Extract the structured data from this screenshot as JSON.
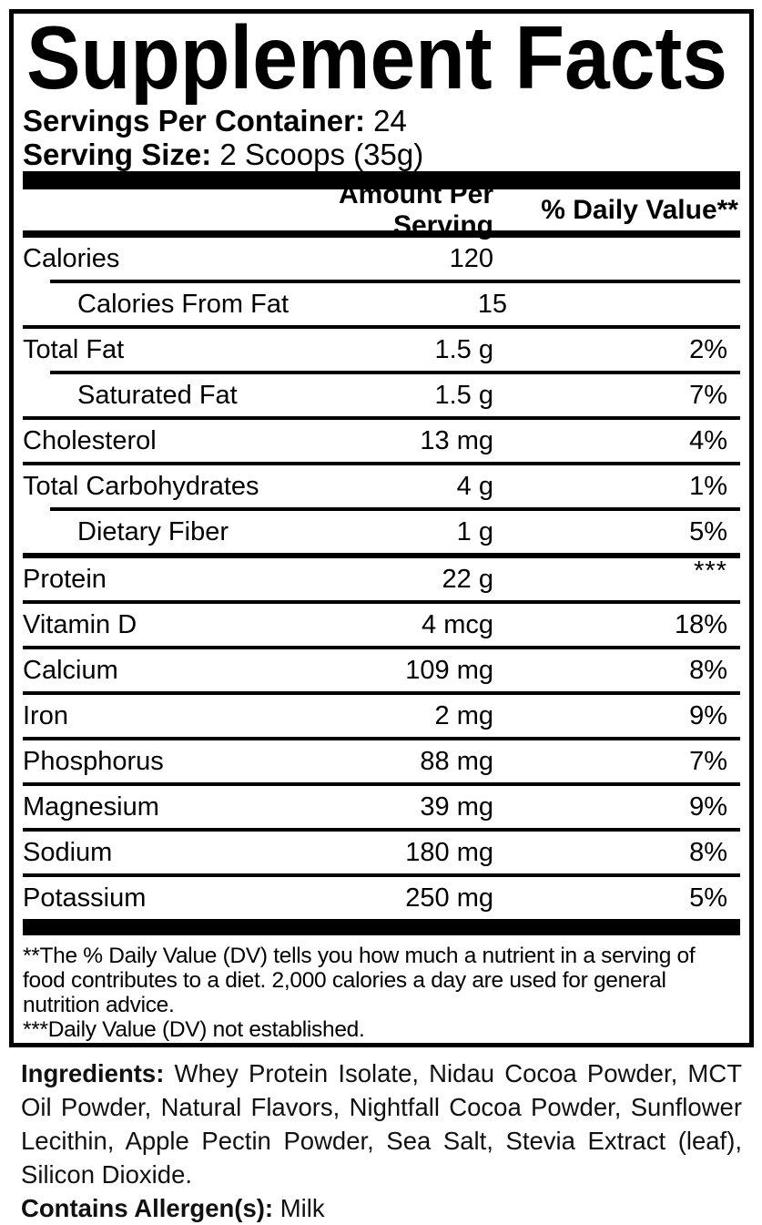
{
  "title": "Supplement Facts",
  "servings": {
    "per_container_label": "Servings Per Container:",
    "per_container_value": " 24",
    "size_label": "Serving Size:",
    "size_value": " 2 Scoops (35g)"
  },
  "table": {
    "amount_header": "Amount Per Serving",
    "dv_header": "% Daily Value**",
    "rows": [
      {
        "name": "Calories",
        "amount": "120",
        "dv": "",
        "indent": false,
        "sep": "indented"
      },
      {
        "name": "Calories From Fat",
        "amount": "15",
        "dv": "",
        "indent": true,
        "sep": "full"
      },
      {
        "name": "Total Fat",
        "amount": "1.5 g",
        "dv": "2%",
        "indent": false,
        "sep": "indented"
      },
      {
        "name": "Saturated Fat",
        "amount": "1.5 g",
        "dv": "7%",
        "indent": true,
        "sep": "full"
      },
      {
        "name": "Cholesterol",
        "amount": "13 mg",
        "dv": "4%",
        "indent": false,
        "sep": "full"
      },
      {
        "name": "Total Carbohydrates",
        "amount": "4 g",
        "dv": "1%",
        "indent": false,
        "sep": "indented"
      },
      {
        "name": "Dietary Fiber",
        "amount": "1 g",
        "dv": "5%",
        "indent": true,
        "sep": "medium"
      },
      {
        "name": "Protein",
        "amount": "22 g",
        "dv": "***",
        "indent": false,
        "sep": "full",
        "dv_raised": true
      },
      {
        "name": "Vitamin D",
        "amount": "4 mcg",
        "dv": "18%",
        "indent": false,
        "sep": "full"
      },
      {
        "name": "Calcium",
        "amount": "109 mg",
        "dv": "8%",
        "indent": false,
        "sep": "full"
      },
      {
        "name": "Iron",
        "amount": "2 mg",
        "dv": "9%",
        "indent": false,
        "sep": "full"
      },
      {
        "name": "Phosphorus",
        "amount": "88 mg",
        "dv": "7%",
        "indent": false,
        "sep": "full"
      },
      {
        "name": "Magnesium",
        "amount": "39 mg",
        "dv": "9%",
        "indent": false,
        "sep": "full"
      },
      {
        "name": "Sodium",
        "amount": "180 mg",
        "dv": "8%",
        "indent": false,
        "sep": "full"
      },
      {
        "name": "Potassium",
        "amount": "250 mg",
        "dv": "5%",
        "indent": false,
        "sep": "none"
      }
    ]
  },
  "footnotes": {
    "daily_value": "**The % Daily Value (DV) tells you how much a nutrient in a serving of food contributes to a diet. 2,000 calories a day are used for general nutrition advice.",
    "not_established": "***Daily Value (DV) not established."
  },
  "ingredients": {
    "label": "Ingredients:",
    "text": " Whey Protein Isolate, Nidau Cocoa Powder, MCT Oil Powder, Natural Flavors, Nightfall Cocoa Powder, Sunflower Lecithin, Apple Pectin Powder, Sea Salt, Stevia Extract (leaf), Silicon Dioxide.",
    "allergen_label": "Contains Allergen(s):",
    "allergen_value": " Milk"
  },
  "colors": {
    "text": "#000000",
    "background": "#ffffff"
  }
}
